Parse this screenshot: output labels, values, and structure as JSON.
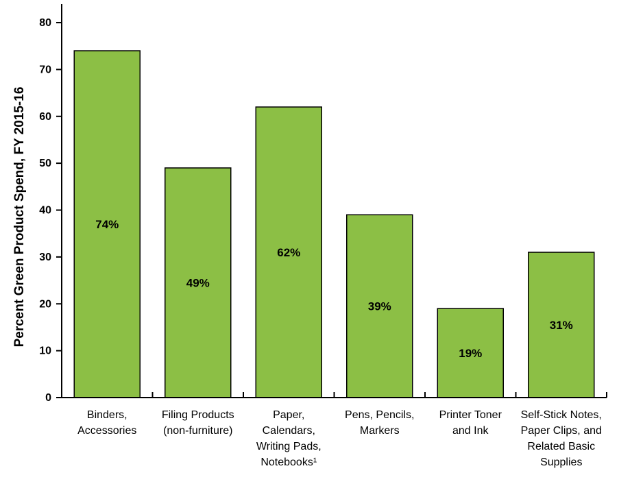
{
  "chart_data": {
    "type": "bar",
    "ylabel": "Percent Green Product Spend, FY 2015-16",
    "ylim": [
      0,
      80
    ],
    "yticks": [
      0,
      10,
      20,
      30,
      40,
      50,
      60,
      70,
      80
    ],
    "grid": false,
    "legend": "none",
    "bar_color": "#8cbf45",
    "bar_edge_color": "#000000",
    "categories": [
      [
        "Binders,",
        "Accessories"
      ],
      [
        "Filing Products",
        "(non-furniture)"
      ],
      [
        "Paper,",
        "Calendars,",
        "Writing Pads,",
        "Notebooks¹"
      ],
      [
        "Pens, Pencils,",
        "Markers"
      ],
      [
        "Printer Toner",
        "and Ink"
      ],
      [
        "Self-Stick Notes,",
        "Paper Clips, and",
        "Related Basic",
        "Supplies"
      ]
    ],
    "values": [
      74,
      49,
      62,
      39,
      19,
      31
    ],
    "data_labels": [
      "74%",
      "49%",
      "62%",
      "39%",
      "19%",
      "31%"
    ]
  }
}
